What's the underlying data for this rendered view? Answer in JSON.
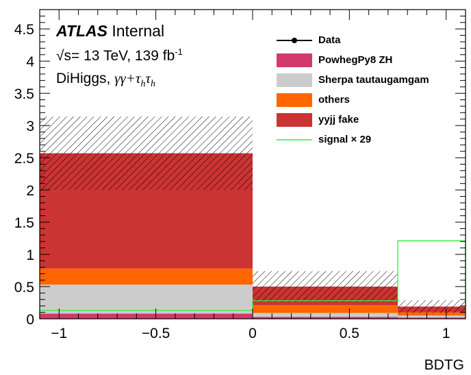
{
  "chart_data": {
    "type": "bar",
    "xlabel": "BDTG",
    "ylabel": "",
    "xlim": [
      -1.1,
      1.1
    ],
    "ylim": [
      0,
      4.8
    ],
    "x_ticks": [
      "−1",
      "−0.5",
      "0",
      "0.5",
      "1"
    ],
    "y_ticks": [
      "0",
      "0.5",
      "1",
      "1.5",
      "2",
      "2.5",
      "3",
      "3.5",
      "4",
      "4.5"
    ],
    "bins": [
      [
        -1.1,
        0.0
      ],
      [
        0.0,
        0.75
      ],
      [
        0.75,
        1.1
      ]
    ],
    "stack_series": [
      {
        "name": "PowhegPy8 ZH",
        "color": "#d23a6b",
        "values": [
          0.08,
          0.03,
          0.02
        ]
      },
      {
        "name": "Sherpa tautaugamgam",
        "color": "#cccccc",
        "values": [
          0.45,
          0.06,
          0.03
        ]
      },
      {
        "name": "others",
        "color": "#ff6600",
        "values": [
          0.25,
          0.12,
          0.05
        ]
      },
      {
        "name": "yyjj fake",
        "color": "#cc3333",
        "values": [
          1.79,
          0.29,
          0.09
        ]
      }
    ],
    "uncertainty_top": [
      3.14,
      0.74,
      0.29
    ],
    "signal": {
      "name": "signal × 29",
      "color": "#33ee33",
      "values": [
        0.13,
        0.28,
        1.21
      ]
    },
    "data_series": {
      "name": "Data",
      "values": []
    },
    "legend_entries": [
      "Data",
      "PowhegPy8 ZH",
      "Sherpa tautaugamgam",
      "others",
      "yyjj fake",
      "signal × 29"
    ],
    "legend_position": "top-right",
    "grid": false,
    "annotations": {
      "atlas": "ATLAS",
      "internal": "Internal",
      "energy_sqrt": "√s",
      "energy_rest": "= 13 TeV, 139 fb",
      "energy_sup": "-1",
      "channel_text": "DiHiggs,",
      "channel_math": "γγ+τ",
      "channel_sub1": "h",
      "channel_tau": "τ",
      "channel_sub2": "h"
    }
  }
}
